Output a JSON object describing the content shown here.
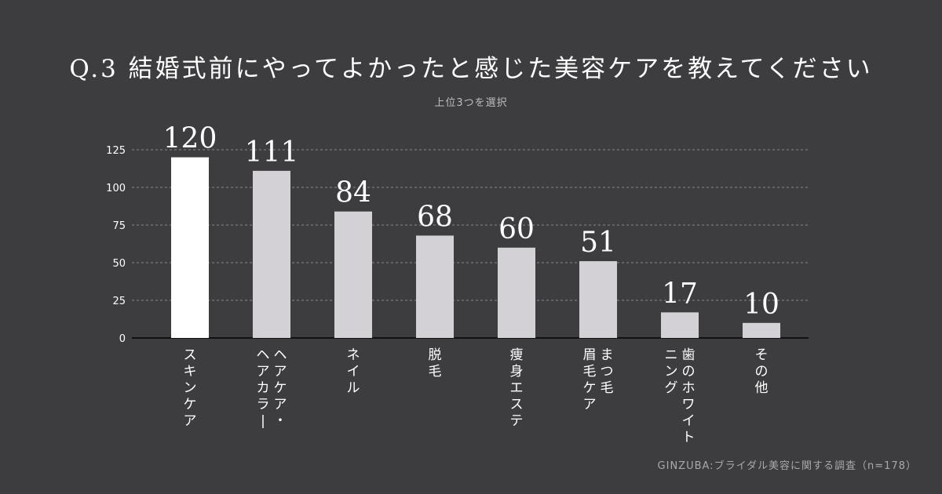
{
  "header": {
    "title": "Q.3  結婚式前にやってよかったと感じた美容ケアを教えてください",
    "subtitle": "上位3つを選択"
  },
  "source": "GINZUBA:ブライダル美容に関する調査（n=178）",
  "colors": {
    "background": "#3d3c3f",
    "highlight_bar": "#ffffff",
    "bar": "#d3d1d5",
    "grid": "#8a898c",
    "text": "#ffffff"
  },
  "chart_data": {
    "type": "bar",
    "categories": [
      [
        "スキンケア"
      ],
      [
        "ヘアケア・",
        "ヘアカラー"
      ],
      [
        "ネイル"
      ],
      [
        "脱毛"
      ],
      [
        "痩身エステ"
      ],
      [
        "まつ毛",
        "眉毛ケア"
      ],
      [
        "歯のホワイト",
        "ニング"
      ],
      [
        "その他"
      ]
    ],
    "values": [
      120,
      111,
      84,
      68,
      60,
      51,
      17,
      10
    ],
    "yticks": [
      0,
      25,
      50,
      75,
      100,
      125
    ],
    "ylim": [
      0,
      125
    ],
    "grid": true,
    "grid_style": "dashed",
    "highlight_index": 0
  }
}
